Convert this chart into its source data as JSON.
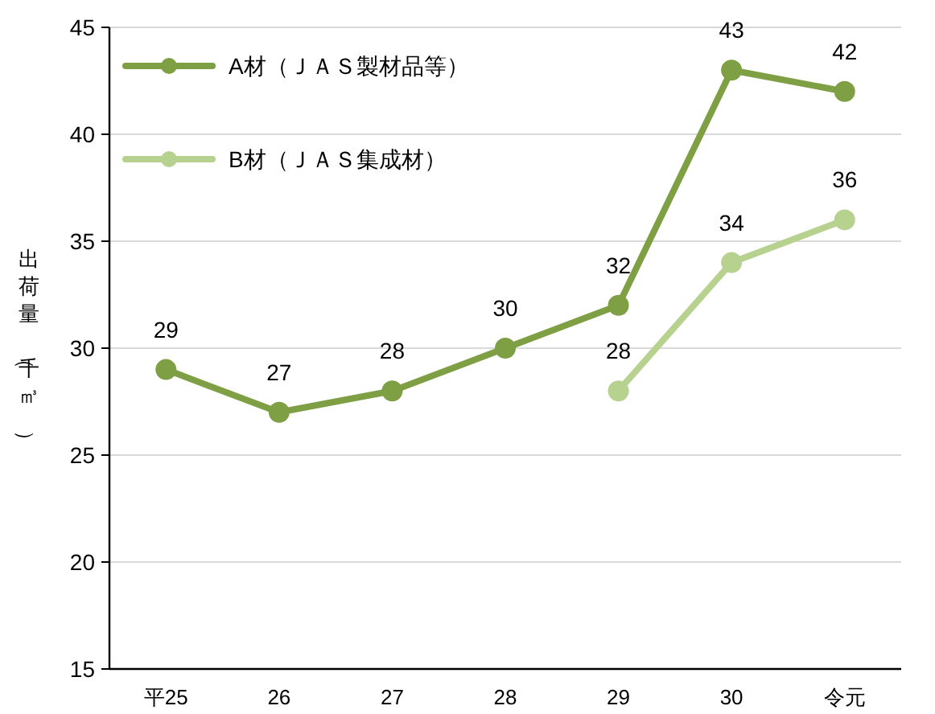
{
  "chart_data": {
    "type": "line",
    "ylabel": "出荷量（千㎥）",
    "categories": [
      "平25",
      "26",
      "27",
      "28",
      "29",
      "30",
      "令元"
    ],
    "series": [
      {
        "name": "A材（ＪＡＳ製材品等）",
        "color": "#7f9f45",
        "values": [
          29,
          27,
          28,
          30,
          32,
          43,
          42
        ]
      },
      {
        "name": "B材（ＪＡＳ集成材）",
        "color": "#b7d18f",
        "values": [
          null,
          null,
          null,
          null,
          28,
          34,
          36
        ]
      }
    ],
    "ylim": [
      15,
      45
    ],
    "yticks": [
      15,
      20,
      25,
      30,
      35,
      40,
      45
    ],
    "grid": "y",
    "legend": "top left",
    "marker": "circle",
    "data_labels": true
  }
}
